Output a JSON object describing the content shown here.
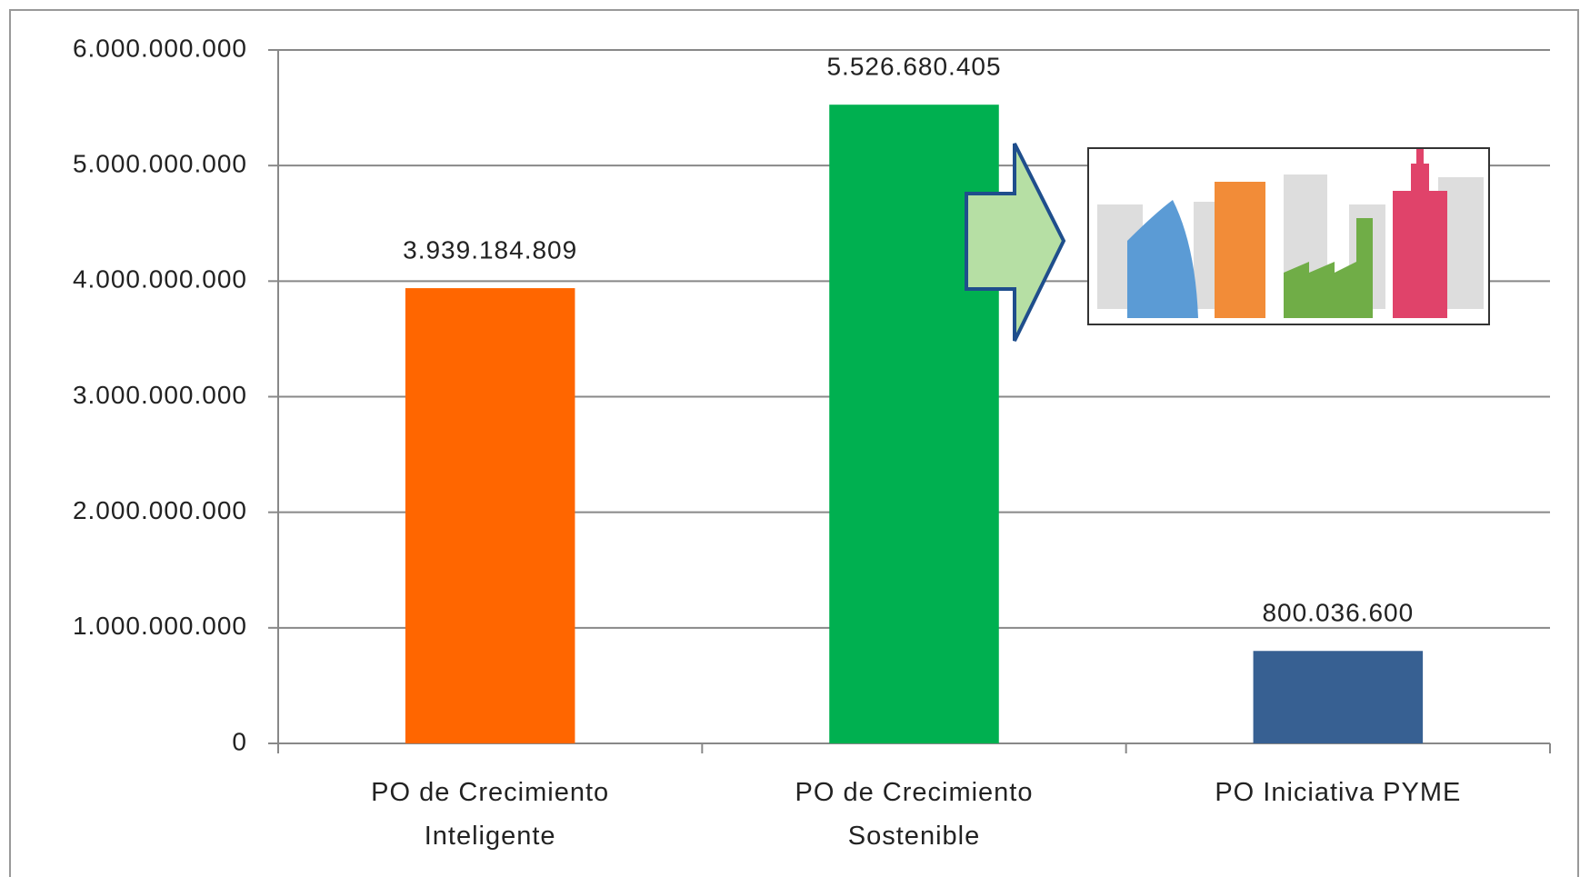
{
  "chart_data": {
    "type": "bar",
    "categories": [
      "PO de Crecimiento Inteligente",
      "PO de Crecimiento Sostenible",
      "PO Iniciativa PYME"
    ],
    "values": [
      3939184809,
      5526680405,
      800036600
    ],
    "value_labels": [
      "3.939.184.809",
      "5.526.680.405",
      "800.036.600"
    ],
    "colors": [
      "#ff6600",
      "#00b050",
      "#376092"
    ],
    "ylim": [
      0,
      6000000000
    ],
    "yticks": [
      0,
      {
        "value": 1000000000,
        "label": "1.000.000.000"
      },
      {
        "value": 2000000000,
        "label": "2.000.000.000"
      },
      {
        "value": 3000000000,
        "label": "3.000.000.000"
      },
      {
        "value": 4000000000,
        "label": "4.000.000.000"
      },
      {
        "value": 5000000000,
        "label": "5.000.000.000"
      },
      {
        "value": 6000000000,
        "label": "6.000.000.000"
      }
    ],
    "grid": true
  }
}
